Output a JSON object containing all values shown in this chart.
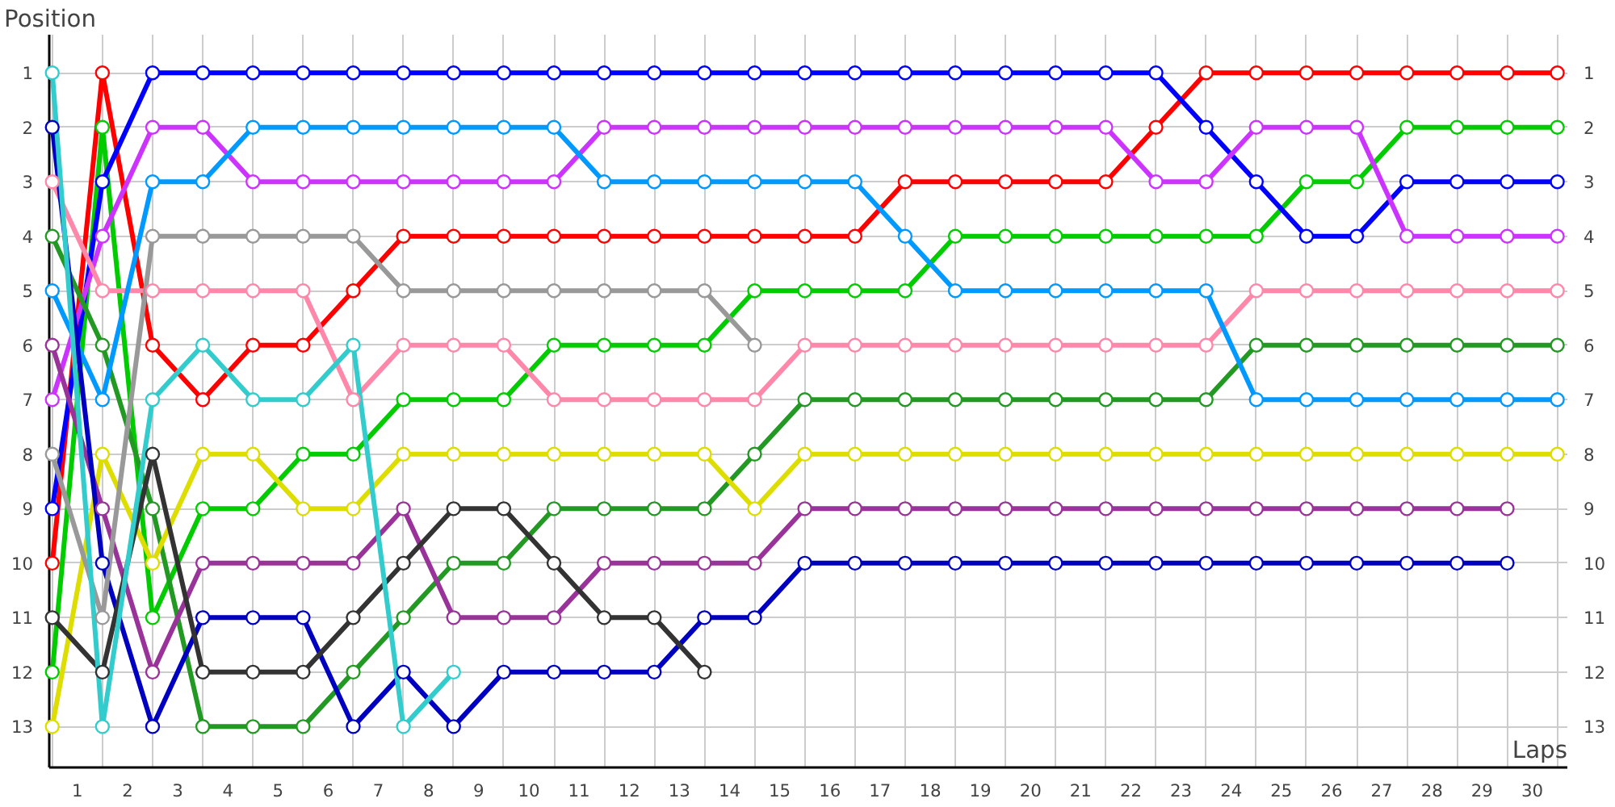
{
  "chart_data": {
    "type": "line",
    "xlabel": "Laps",
    "ylabel": "Position",
    "x": [
      0,
      1,
      2,
      3,
      4,
      5,
      6,
      7,
      8,
      9,
      10,
      11,
      12,
      13,
      14,
      15,
      16,
      17,
      18,
      19,
      20,
      21,
      22,
      23,
      24,
      25,
      26,
      27,
      28,
      29,
      30
    ],
    "series": [
      {
        "color": "#ff0000",
        "values": [
          10,
          1,
          6,
          7,
          6,
          6,
          5,
          4,
          4,
          4,
          4,
          4,
          4,
          4,
          4,
          4,
          4,
          3,
          3,
          3,
          3,
          3,
          2,
          1,
          1,
          1,
          1,
          1,
          1,
          1,
          1
        ]
      },
      {
        "color": "#00cc00",
        "values": [
          12,
          2,
          11,
          9,
          9,
          8,
          8,
          7,
          7,
          7,
          6,
          6,
          6,
          6,
          5,
          5,
          5,
          5,
          4,
          4,
          4,
          4,
          4,
          4,
          4,
          3,
          3,
          2,
          2,
          2,
          2
        ]
      },
      {
        "color": "#0000ff",
        "values": [
          9,
          3,
          1,
          1,
          1,
          1,
          1,
          1,
          1,
          1,
          1,
          1,
          1,
          1,
          1,
          1,
          1,
          1,
          1,
          1,
          1,
          1,
          1,
          2,
          3,
          4,
          4,
          3,
          3,
          3,
          3
        ]
      },
      {
        "color": "#cc33ff",
        "values": [
          7,
          4,
          2,
          2,
          3,
          3,
          3,
          3,
          3,
          3,
          3,
          2,
          2,
          2,
          2,
          2,
          2,
          2,
          2,
          2,
          2,
          2,
          3,
          3,
          2,
          2,
          2,
          4,
          4,
          4,
          4
        ]
      },
      {
        "color": "#ff88aa",
        "values": [
          3,
          5,
          5,
          5,
          5,
          5,
          7,
          6,
          6,
          6,
          7,
          7,
          7,
          7,
          7,
          6,
          6,
          6,
          6,
          6,
          6,
          6,
          6,
          6,
          5,
          5,
          5,
          5,
          5,
          5,
          5
        ]
      },
      {
        "color": "#229922",
        "values": [
          4,
          6,
          9,
          13,
          13,
          13,
          12,
          11,
          10,
          10,
          9,
          9,
          9,
          9,
          8,
          7,
          7,
          7,
          7,
          7,
          7,
          7,
          7,
          7,
          6,
          6,
          6,
          6,
          6,
          6,
          6
        ]
      },
      {
        "color": "#0099ff",
        "values": [
          5,
          7,
          3,
          3,
          2,
          2,
          2,
          2,
          2,
          2,
          2,
          3,
          3,
          3,
          3,
          3,
          3,
          4,
          5,
          5,
          5,
          5,
          5,
          5,
          7,
          7,
          7,
          7,
          7,
          7,
          7
        ]
      },
      {
        "color": "#dddd00",
        "values": [
          13,
          8,
          10,
          8,
          8,
          9,
          9,
          8,
          8,
          8,
          8,
          8,
          8,
          8,
          9,
          8,
          8,
          8,
          8,
          8,
          8,
          8,
          8,
          8,
          8,
          8,
          8,
          8,
          8,
          8,
          8
        ]
      },
      {
        "color": "#993399",
        "values": [
          6,
          9,
          12,
          10,
          10,
          10,
          10,
          9,
          11,
          11,
          11,
          10,
          10,
          10,
          10,
          9,
          9,
          9,
          9,
          9,
          9,
          9,
          9,
          9,
          9,
          9,
          9,
          9,
          9,
          9,
          null
        ]
      },
      {
        "color": "#0000c0",
        "values": [
          2,
          10,
          13,
          11,
          11,
          11,
          13,
          12,
          13,
          12,
          12,
          12,
          12,
          11,
          11,
          10,
          10,
          10,
          10,
          10,
          10,
          10,
          10,
          10,
          10,
          10,
          10,
          10,
          10,
          10,
          null
        ]
      },
      {
        "color": "#999999",
        "values": [
          8,
          11,
          4,
          4,
          4,
          4,
          4,
          5,
          5,
          5,
          5,
          5,
          5,
          5,
          6,
          null,
          null,
          null,
          null,
          null,
          null,
          null,
          null,
          null,
          null,
          null,
          null,
          null,
          null,
          null,
          null
        ]
      },
      {
        "color": "#333333",
        "values": [
          11,
          12,
          8,
          12,
          12,
          12,
          11,
          10,
          9,
          9,
          10,
          11,
          11,
          12,
          null,
          null,
          null,
          null,
          null,
          null,
          null,
          null,
          null,
          null,
          null,
          null,
          null,
          null,
          null,
          null,
          null
        ]
      },
      {
        "color": "#33cccc",
        "values": [
          1,
          13,
          7,
          6,
          7,
          7,
          6,
          13,
          12,
          null,
          null,
          null,
          null,
          null,
          null,
          null,
          null,
          null,
          null,
          null,
          null,
          null,
          null,
          null,
          null,
          null,
          null,
          null,
          null,
          null,
          null
        ]
      }
    ],
    "xlim": [
      -0.06,
      30.2
    ],
    "xticks": [
      {
        "value": 0.5,
        "label": "1"
      },
      {
        "value": 1.5,
        "label": "2"
      },
      {
        "value": 2.5,
        "label": "3"
      },
      {
        "value": 3.5,
        "label": "4"
      },
      {
        "value": 4.5,
        "label": "5"
      },
      {
        "value": 5.5,
        "label": "6"
      },
      {
        "value": 6.5,
        "label": "7"
      },
      {
        "value": 7.5,
        "label": "8"
      },
      {
        "value": 8.5,
        "label": "9"
      },
      {
        "value": 9.5,
        "label": "10"
      },
      {
        "value": 10.5,
        "label": "11"
      },
      {
        "value": 11.5,
        "label": "12"
      },
      {
        "value": 12.5,
        "label": "13"
      },
      {
        "value": 13.5,
        "label": "14"
      },
      {
        "value": 14.5,
        "label": "15"
      },
      {
        "value": 15.5,
        "label": "16"
      },
      {
        "value": 16.5,
        "label": "17"
      },
      {
        "value": 17.5,
        "label": "18"
      },
      {
        "value": 18.5,
        "label": "19"
      },
      {
        "value": 19.5,
        "label": "20"
      },
      {
        "value": 20.5,
        "label": "21"
      },
      {
        "value": 21.5,
        "label": "22"
      },
      {
        "value": 22.5,
        "label": "23"
      },
      {
        "value": 23.5,
        "label": "24"
      },
      {
        "value": 24.5,
        "label": "25"
      },
      {
        "value": 25.5,
        "label": "26"
      },
      {
        "value": 26.5,
        "label": "27"
      },
      {
        "value": 27.5,
        "label": "28"
      },
      {
        "value": 28.5,
        "label": "29"
      },
      {
        "value": 29.5,
        "label": "30"
      },
      {
        "value": 0,
        "label": null
      },
      {
        "value": 1,
        "label": null
      },
      {
        "value": 2,
        "label": null
      },
      {
        "value": 3,
        "label": null
      },
      {
        "value": 4,
        "label": null
      },
      {
        "value": 5,
        "label": null
      },
      {
        "value": 6,
        "label": null
      },
      {
        "value": 7,
        "label": null
      },
      {
        "value": 8,
        "label": null
      },
      {
        "value": 9,
        "label": null
      },
      {
        "value": 10,
        "label": null
      },
      {
        "value": 11,
        "label": null
      },
      {
        "value": 12,
        "label": null
      },
      {
        "value": 13,
        "label": null
      },
      {
        "value": 14,
        "label": null
      },
      {
        "value": 15,
        "label": null
      },
      {
        "value": 16,
        "label": null
      },
      {
        "value": 17,
        "label": null
      },
      {
        "value": 18,
        "label": null
      },
      {
        "value": 19,
        "label": null
      },
      {
        "value": 20,
        "label": null
      },
      {
        "value": 21,
        "label": null
      },
      {
        "value": 22,
        "label": null
      },
      {
        "value": 23,
        "label": null
      },
      {
        "value": 24,
        "label": null
      },
      {
        "value": 25,
        "label": null
      },
      {
        "value": 26,
        "label": null
      },
      {
        "value": 27,
        "label": null
      },
      {
        "value": 28,
        "label": null
      },
      {
        "value": 29,
        "label": null
      },
      {
        "value": 30,
        "label": null
      }
    ],
    "ylim": [
      13.75,
      0.3
    ],
    "yticks": [
      1,
      2,
      3,
      4,
      5,
      6,
      7,
      8,
      9,
      10,
      11,
      12,
      13
    ],
    "y2lim": [
      13.75,
      0.3
    ],
    "y2ticks": [
      1,
      2,
      3,
      4,
      5,
      6,
      7,
      8,
      9,
      10,
      11,
      12,
      13
    ],
    "grid": true,
    "marker": "circle",
    "line_style": "solid"
  }
}
